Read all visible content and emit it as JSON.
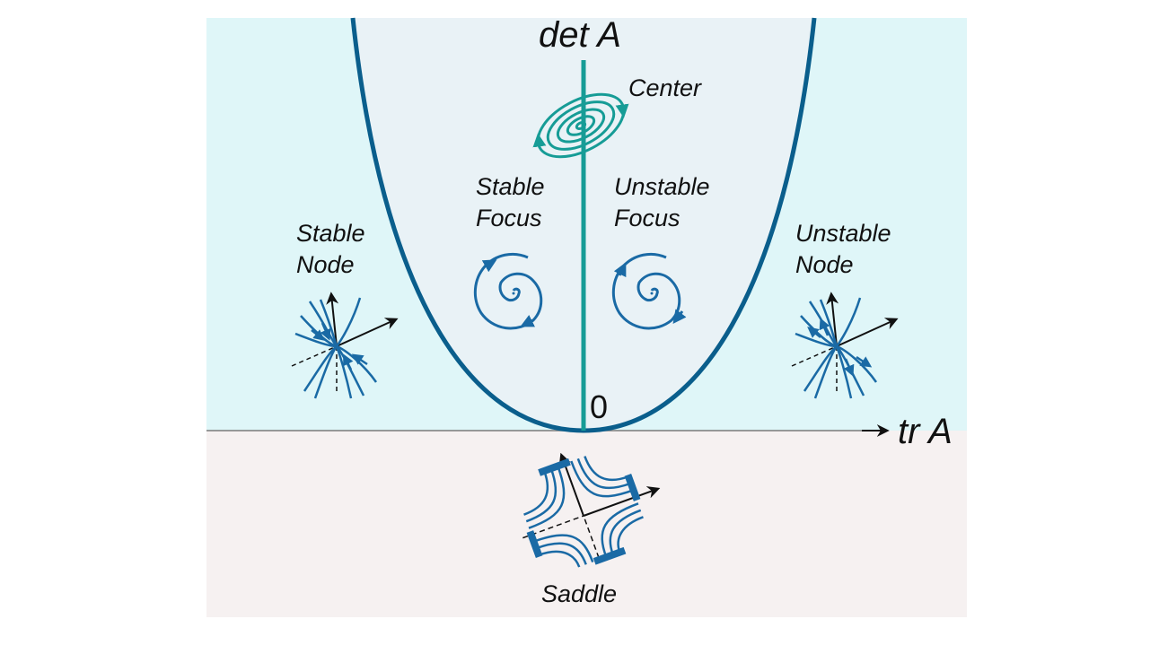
{
  "axes": {
    "vertical_label": "det A",
    "horizontal_label": "tr A",
    "origin_label": "0"
  },
  "regions": {
    "center": "Center",
    "stable_focus": [
      "Stable",
      "Focus"
    ],
    "unstable_focus": [
      "Unstable",
      "Focus"
    ],
    "stable_node": [
      "Stable",
      "Node"
    ],
    "unstable_node": [
      "Unstable",
      "Node"
    ],
    "saddle": "Saddle"
  },
  "colors": {
    "upper_background": "#dff6f8",
    "parabola_interior": "#e9f2f6",
    "lower_background": "#f6f1f1",
    "parabola": "#0a5e8c",
    "center_line": "#169c96",
    "portrait": "#1a6aa5",
    "axis": "#111111"
  }
}
